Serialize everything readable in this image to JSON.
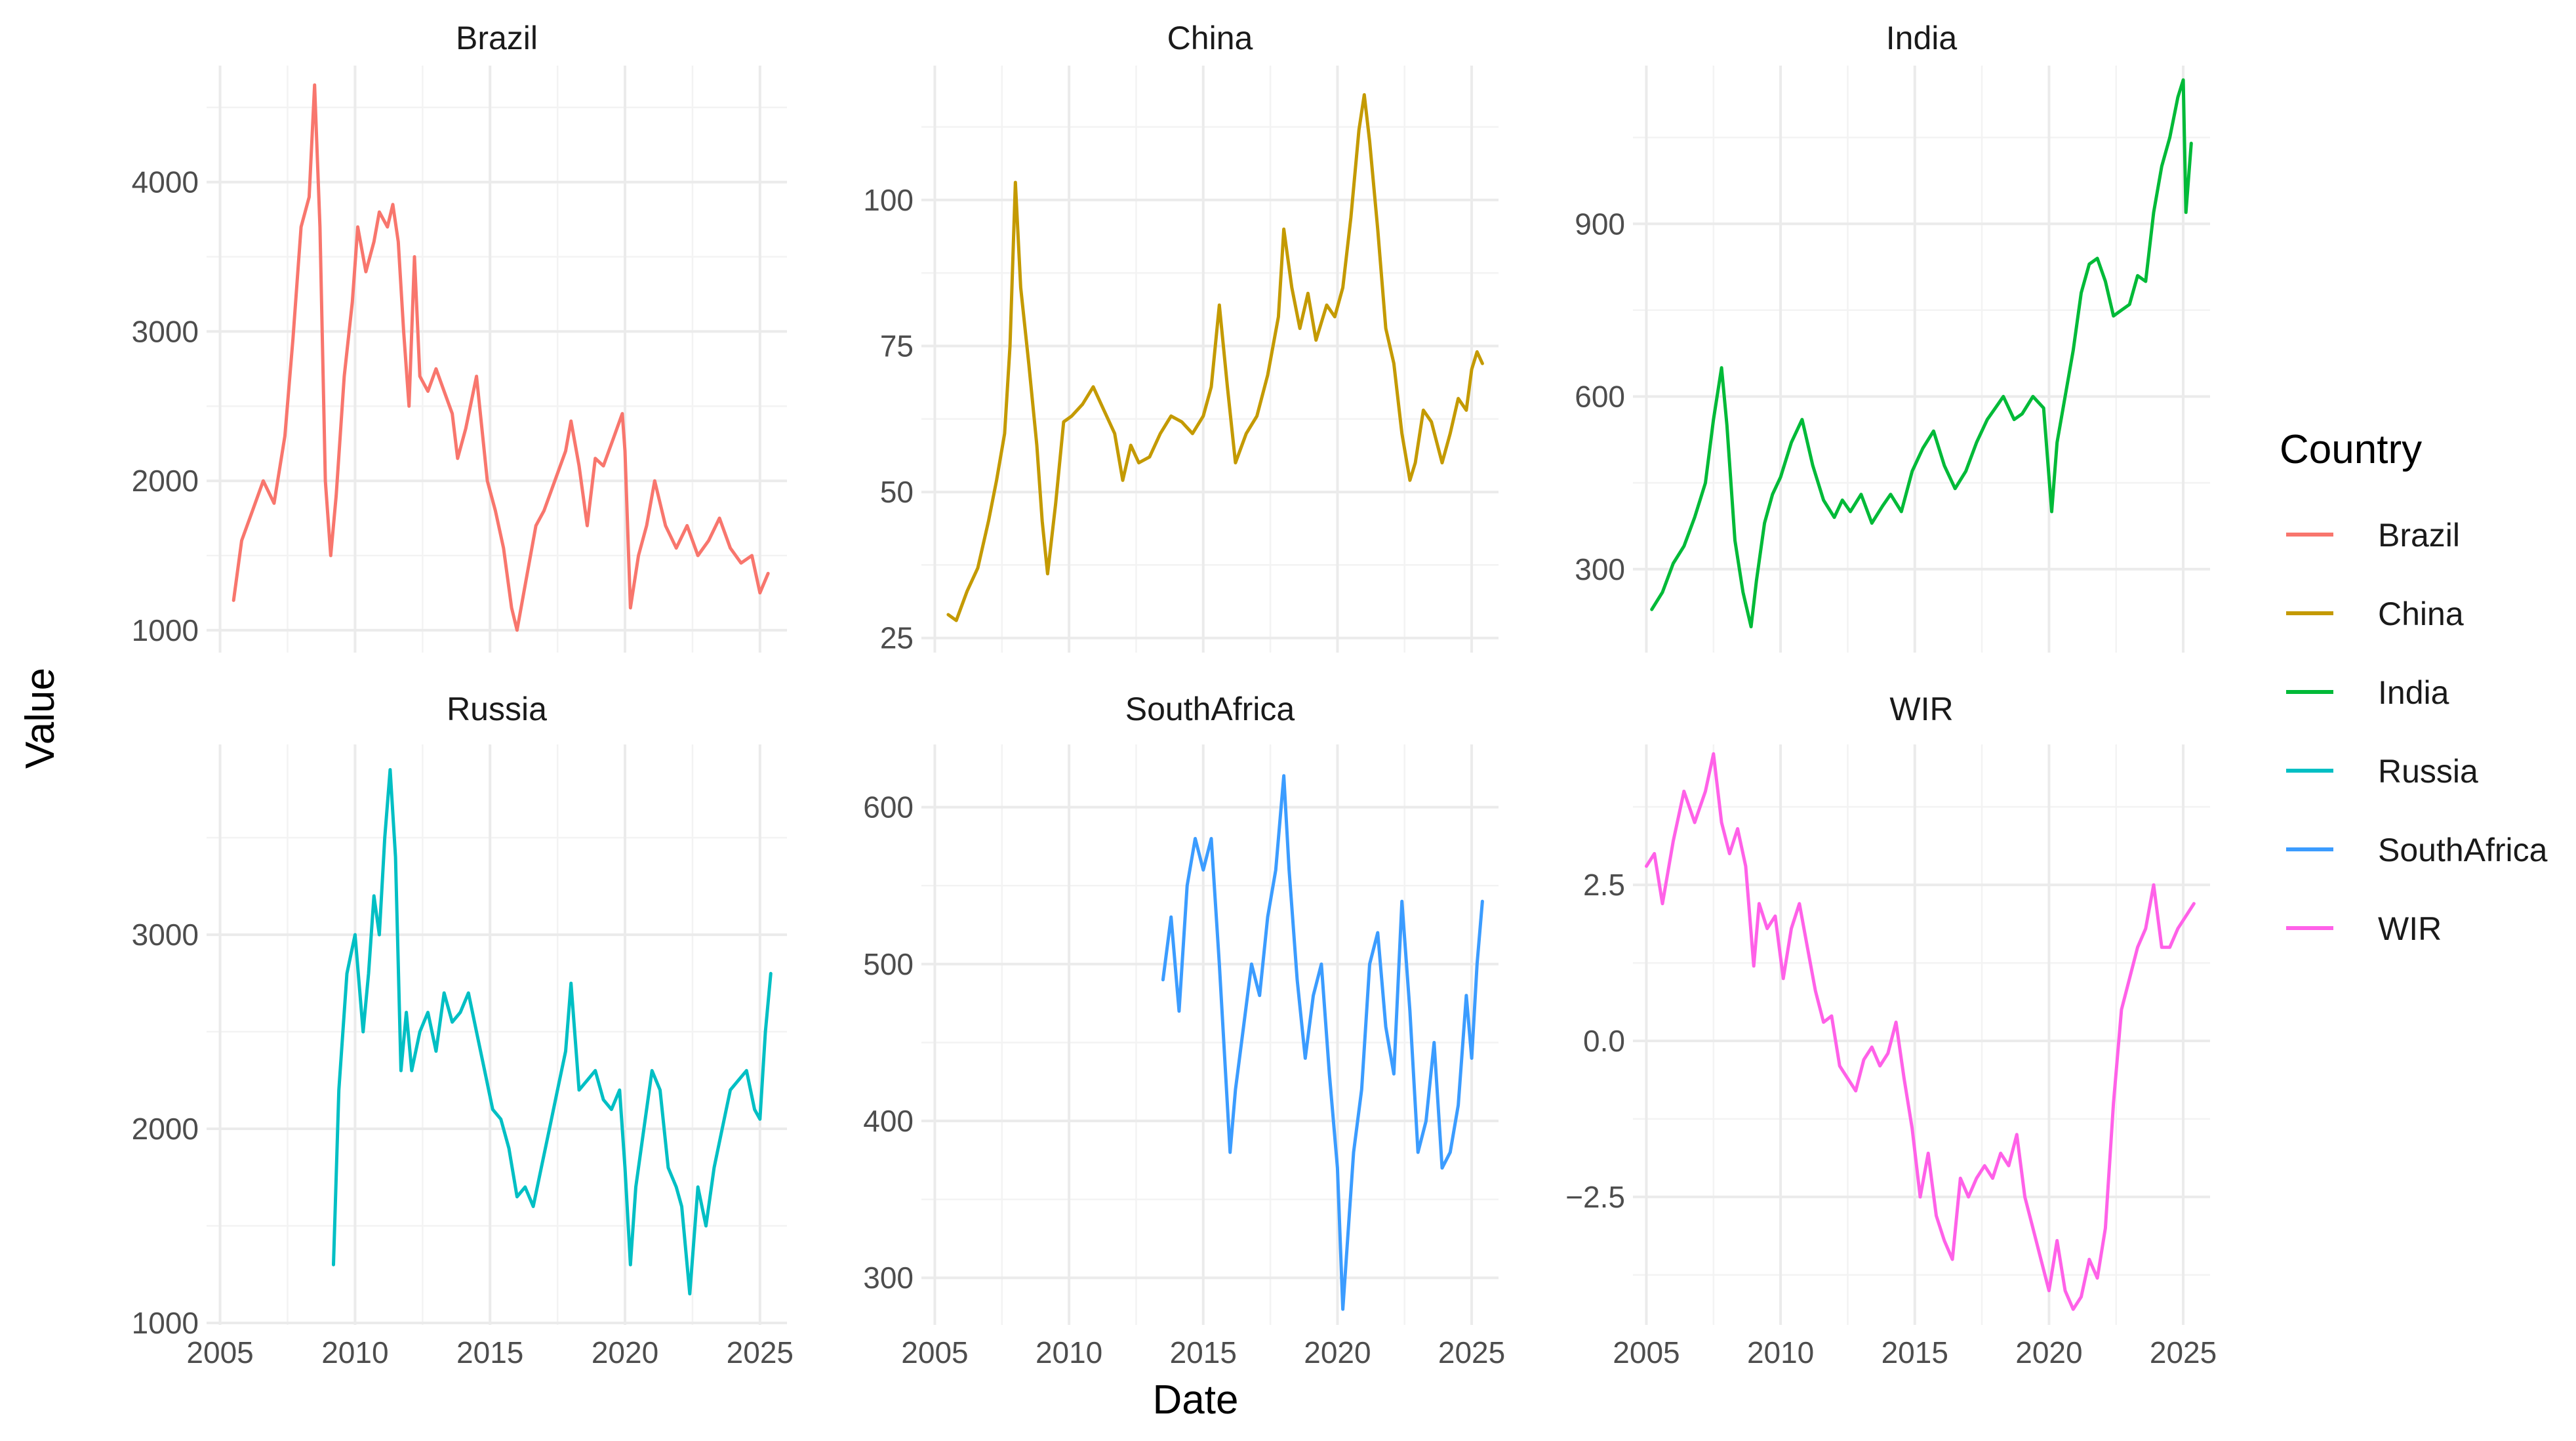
{
  "chart_data": {
    "type": "line",
    "xlabel": "Date",
    "ylabel": "Value",
    "legend": {
      "title": "Country",
      "position": "right",
      "entries": [
        {
          "name": "Brazil",
          "color": "#F8766D"
        },
        {
          "name": "China",
          "color": "#C49A00"
        },
        {
          "name": "India",
          "color": "#00BA38"
        },
        {
          "name": "Russia",
          "color": "#00BFC4"
        },
        {
          "name": "SouthAfrica",
          "color": "#3B9CFF"
        },
        {
          "name": "WIR",
          "color": "#FF61E8"
        }
      ]
    },
    "x_ticks": [
      "2005",
      "2010",
      "2015",
      "2020",
      "2025"
    ],
    "xlim": [
      2004.5,
      2026
    ],
    "panels": [
      {
        "name": "Brazil",
        "color": "#F8766D",
        "y_ticks": [
          "1000",
          "2000",
          "3000",
          "4000"
        ],
        "y_tick_values": [
          1000,
          2000,
          3000,
          4000
        ],
        "ylim": [
          850,
          4780
        ],
        "x": [
          2005.5,
          2005.8,
          2006.2,
          2006.6,
          2007.0,
          2007.4,
          2007.7,
          2008.0,
          2008.3,
          2008.5,
          2008.7,
          2008.9,
          2009.1,
          2009.3,
          2009.6,
          2009.9,
          2010.1,
          2010.4,
          2010.7,
          2010.9,
          2011.2,
          2011.4,
          2011.6,
          2011.8,
          2012.0,
          2012.2,
          2012.4,
          2012.7,
          2013.0,
          2013.3,
          2013.6,
          2013.8,
          2014.1,
          2014.5,
          2014.9,
          2015.2,
          2015.5,
          2015.8,
          2016.0,
          2016.3,
          2016.7,
          2017.0,
          2017.4,
          2017.8,
          2018.0,
          2018.3,
          2018.6,
          2018.9,
          2019.2,
          2019.6,
          2019.9,
          2020.0,
          2020.2,
          2020.5,
          2020.8,
          2021.1,
          2021.5,
          2021.9,
          2022.3,
          2022.7,
          2023.1,
          2023.5,
          2023.9,
          2024.3,
          2024.7,
          2025.0,
          2025.3
        ],
        "y": [
          1200,
          1600,
          1800,
          2000,
          1850,
          2300,
          2950,
          3700,
          3900,
          4650,
          3700,
          2000,
          1500,
          1900,
          2700,
          3200,
          3700,
          3400,
          3600,
          3800,
          3700,
          3850,
          3600,
          3000,
          2500,
          3500,
          2700,
          2600,
          2750,
          2600,
          2450,
          2150,
          2350,
          2700,
          2000,
          1800,
          1550,
          1150,
          1000,
          1300,
          1700,
          1800,
          2000,
          2200,
          2400,
          2100,
          1700,
          2150,
          2100,
          2300,
          2450,
          2200,
          1150,
          1500,
          1700,
          2000,
          1700,
          1550,
          1700,
          1500,
          1600,
          1750,
          1550,
          1450,
          1500,
          1250,
          1380
        ]
      },
      {
        "name": "China",
        "color": "#C49A00",
        "y_ticks": [
          "25",
          "50",
          "75",
          "100"
        ],
        "y_tick_values": [
          25,
          50,
          75,
          100
        ],
        "ylim": [
          22.5,
          123
        ],
        "x": [
          2005.5,
          2005.8,
          2006.2,
          2006.6,
          2007.0,
          2007.3,
          2007.6,
          2007.8,
          2008.0,
          2008.2,
          2008.5,
          2008.8,
          2009.0,
          2009.2,
          2009.5,
          2009.8,
          2010.1,
          2010.5,
          2010.9,
          2011.3,
          2011.7,
          2012.0,
          2012.3,
          2012.6,
          2013.0,
          2013.4,
          2013.8,
          2014.2,
          2014.6,
          2015.0,
          2015.3,
          2015.6,
          2015.9,
          2016.2,
          2016.6,
          2017.0,
          2017.4,
          2017.8,
          2018.0,
          2018.3,
          2018.6,
          2018.9,
          2019.2,
          2019.6,
          2019.9,
          2020.2,
          2020.5,
          2020.8,
          2021.0,
          2021.2,
          2021.5,
          2021.8,
          2022.1,
          2022.4,
          2022.7,
          2022.9,
          2023.2,
          2023.5,
          2023.9,
          2024.2,
          2024.5,
          2024.8,
          2025.0,
          2025.2,
          2025.4
        ],
        "y": [
          29,
          28,
          33,
          37,
          45,
          52,
          60,
          75,
          103,
          85,
          72,
          58,
          45,
          36,
          48,
          62,
          63,
          65,
          68,
          64,
          60,
          52,
          58,
          55,
          56,
          60,
          63,
          62,
          60,
          63,
          68,
          82,
          68,
          55,
          60,
          63,
          70,
          80,
          95,
          85,
          78,
          84,
          76,
          82,
          80,
          85,
          97,
          112,
          118,
          110,
          95,
          78,
          72,
          60,
          52,
          55,
          64,
          62,
          55,
          60,
          66,
          64,
          71,
          74,
          72
        ]
      },
      {
        "name": "India",
        "color": "#00BA38",
        "y_ticks": [
          "300",
          "600",
          "900"
        ],
        "y_tick_values": [
          300,
          600,
          900
        ],
        "ylim": [
          155,
          1175
        ],
        "x": [
          2005.2,
          2005.6,
          2006.0,
          2006.4,
          2006.8,
          2007.2,
          2007.5,
          2007.8,
          2008.0,
          2008.3,
          2008.6,
          2008.9,
          2009.1,
          2009.4,
          2009.7,
          2010.0,
          2010.4,
          2010.8,
          2011.2,
          2011.6,
          2012.0,
          2012.3,
          2012.6,
          2013.0,
          2013.4,
          2013.8,
          2014.1,
          2014.5,
          2014.9,
          2015.3,
          2015.7,
          2016.1,
          2016.5,
          2016.9,
          2017.3,
          2017.7,
          2018.0,
          2018.3,
          2018.7,
          2019.0,
          2019.4,
          2019.8,
          2020.1,
          2020.3,
          2020.6,
          2020.9,
          2021.2,
          2021.5,
          2021.8,
          2022.1,
          2022.4,
          2022.7,
          2023.0,
          2023.3,
          2023.6,
          2023.9,
          2024.2,
          2024.5,
          2024.8,
          2025.0,
          2025.1,
          2025.3
        ],
        "y": [
          230,
          260,
          310,
          340,
          390,
          450,
          560,
          650,
          550,
          350,
          260,
          200,
          280,
          380,
          430,
          460,
          520,
          560,
          480,
          420,
          390,
          420,
          400,
          430,
          380,
          410,
          430,
          400,
          470,
          510,
          540,
          480,
          440,
          470,
          520,
          560,
          580,
          600,
          560,
          570,
          600,
          580,
          400,
          520,
          600,
          680,
          780,
          830,
          840,
          800,
          740,
          750,
          760,
          810,
          800,
          920,
          1000,
          1050,
          1120,
          1150,
          920,
          1040
        ]
      },
      {
        "name": "Russia",
        "color": "#00BFC4",
        "y_ticks": [
          "1000",
          "2000",
          "3000"
        ],
        "y_tick_values": [
          1000,
          2000,
          3000
        ],
        "ylim": [
          990,
          3980
        ],
        "x": [
          2009.2,
          2009.4,
          2009.7,
          2010.0,
          2010.3,
          2010.5,
          2010.7,
          2010.9,
          2011.1,
          2011.3,
          2011.5,
          2011.7,
          2011.9,
          2012.1,
          2012.4,
          2012.7,
          2013.0,
          2013.3,
          2013.6,
          2013.9,
          2014.2,
          2014.5,
          2014.8,
          2015.1,
          2015.4,
          2015.7,
          2016.0,
          2016.3,
          2016.6,
          2016.9,
          2017.2,
          2017.5,
          2017.8,
          2018.0,
          2018.3,
          2018.6,
          2018.9,
          2019.2,
          2019.5,
          2019.8,
          2020.0,
          2020.2,
          2020.4,
          2020.7,
          2021.0,
          2021.3,
          2021.6,
          2021.9,
          2022.1,
          2022.4,
          2022.7,
          2023.0,
          2023.3,
          2023.6,
          2023.9,
          2024.2,
          2024.5,
          2024.8,
          2025.0,
          2025.2,
          2025.4
        ],
        "y": [
          1300,
          2200,
          2800,
          3000,
          2500,
          2800,
          3200,
          3000,
          3500,
          3850,
          3400,
          2300,
          2600,
          2300,
          2500,
          2600,
          2400,
          2700,
          2550,
          2600,
          2700,
          2500,
          2300,
          2100,
          2050,
          1900,
          1650,
          1700,
          1600,
          1800,
          2000,
          2200,
          2400,
          2750,
          2200,
          2250,
          2300,
          2150,
          2100,
          2200,
          1800,
          1300,
          1700,
          2000,
          2300,
          2200,
          1800,
          1700,
          1600,
          1150,
          1700,
          1500,
          1800,
          2000,
          2200,
          2250,
          2300,
          2100,
          2050,
          2500,
          2800
        ]
      },
      {
        "name": "SouthAfrica",
        "color": "#3B9CFF",
        "y_ticks": [
          "300",
          "400",
          "500",
          "600"
        ],
        "y_tick_values": [
          300,
          400,
          500,
          600
        ],
        "ylim": [
          270,
          640
        ],
        "x": [
          2013.5,
          2013.8,
          2014.1,
          2014.4,
          2014.7,
          2015.0,
          2015.3,
          2015.6,
          2015.8,
          2016.0,
          2016.2,
          2016.5,
          2016.8,
          2017.1,
          2017.4,
          2017.7,
          2018.0,
          2018.2,
          2018.5,
          2018.8,
          2019.1,
          2019.4,
          2019.7,
          2020.0,
          2020.2,
          2020.4,
          2020.6,
          2020.9,
          2021.2,
          2021.5,
          2021.8,
          2022.1,
          2022.4,
          2022.7,
          2023.0,
          2023.3,
          2023.6,
          2023.9,
          2024.2,
          2024.5,
          2024.8,
          2025.0,
          2025.2,
          2025.4
        ],
        "y": [
          490,
          530,
          470,
          550,
          580,
          560,
          580,
          500,
          440,
          380,
          420,
          460,
          500,
          480,
          530,
          560,
          620,
          560,
          490,
          440,
          480,
          500,
          430,
          370,
          280,
          330,
          380,
          420,
          500,
          520,
          460,
          430,
          540,
          470,
          380,
          400,
          450,
          370,
          380,
          410,
          480,
          440,
          500,
          540
        ]
      },
      {
        "name": "WIR",
        "color": "#FF61E8",
        "y_ticks": [
          "−2.5",
          "0.0",
          "2.5"
        ],
        "y_tick_values": [
          -2.5,
          0,
          2.5
        ],
        "ylim": [
          -4.55,
          4.75
        ],
        "x": [
          2005.0,
          2005.3,
          2005.6,
          2006.0,
          2006.4,
          2006.8,
          2007.2,
          2007.5,
          2007.8,
          2008.1,
          2008.4,
          2008.7,
          2009.0,
          2009.2,
          2009.5,
          2009.8,
          2010.1,
          2010.4,
          2010.7,
          2011.0,
          2011.3,
          2011.6,
          2011.9,
          2012.2,
          2012.5,
          2012.8,
          2013.1,
          2013.4,
          2013.7,
          2014.0,
          2014.3,
          2014.6,
          2014.9,
          2015.2,
          2015.5,
          2015.8,
          2016.1,
          2016.4,
          2016.7,
          2017.0,
          2017.3,
          2017.6,
          2017.9,
          2018.2,
          2018.5,
          2018.8,
          2019.1,
          2019.4,
          2019.7,
          2020.0,
          2020.3,
          2020.6,
          2020.9,
          2021.2,
          2021.5,
          2021.8,
          2022.1,
          2022.4,
          2022.7,
          2023.0,
          2023.3,
          2023.6,
          2023.9,
          2024.2,
          2024.5,
          2024.8,
          2025.1,
          2025.4
        ],
        "y": [
          2.8,
          3.0,
          2.2,
          3.2,
          4.0,
          3.5,
          4.0,
          4.6,
          3.5,
          3.0,
          3.4,
          2.8,
          1.2,
          2.2,
          1.8,
          2.0,
          1.0,
          1.8,
          2.2,
          1.5,
          0.8,
          0.3,
          0.4,
          -0.4,
          -0.6,
          -0.8,
          -0.3,
          -0.1,
          -0.4,
          -0.2,
          0.3,
          -0.6,
          -1.4,
          -2.5,
          -1.8,
          -2.8,
          -3.2,
          -3.5,
          -2.2,
          -2.5,
          -2.2,
          -2.0,
          -2.2,
          -1.8,
          -2.0,
          -1.5,
          -2.5,
          -3.0,
          -3.5,
          -4.0,
          -3.2,
          -4.0,
          -4.3,
          -4.1,
          -3.5,
          -3.8,
          -3.0,
          -1.0,
          0.5,
          1.0,
          1.5,
          1.8,
          2.5,
          1.5,
          1.5,
          1.8,
          2.0,
          2.2
        ]
      }
    ]
  }
}
